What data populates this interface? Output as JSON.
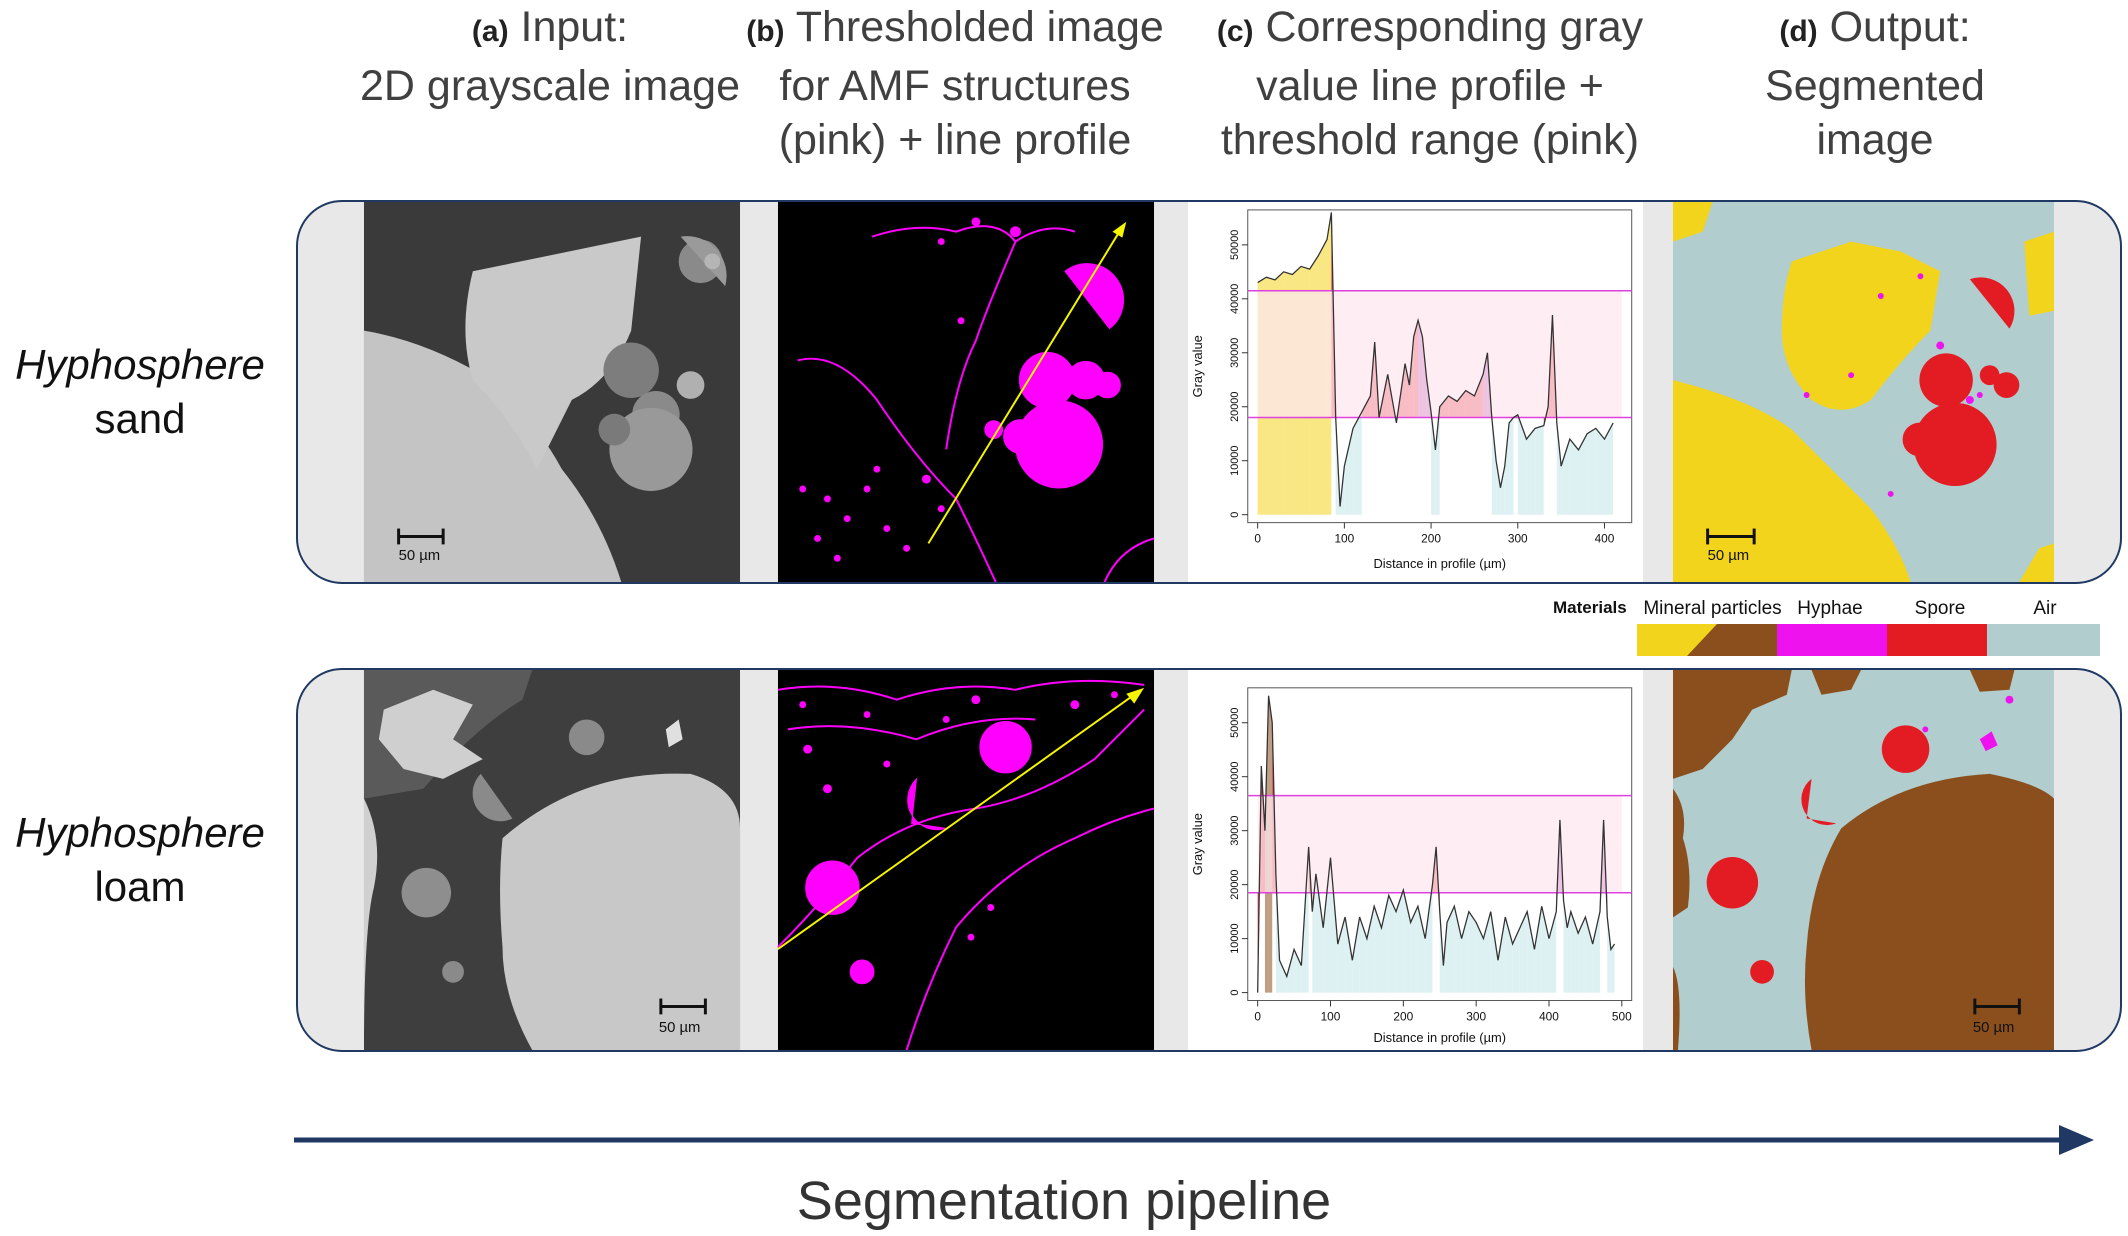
{
  "columns": [
    {
      "tag": "(a)",
      "title_first": "Input:",
      "line2": "2D grayscale image",
      "line3": ""
    },
    {
      "tag": "(b)",
      "title_first": "Thresholded image",
      "line2": "for AMF structures",
      "line3": "(pink) + line profile"
    },
    {
      "tag": "(c)",
      "title_first": "Corresponding gray",
      "line2": "value line profile +",
      "line3": "threshold range (pink)"
    },
    {
      "tag": "(d)",
      "title_first": "Output:",
      "line2": "Segmented",
      "line3": "image"
    }
  ],
  "rows": [
    {
      "label_italic": "Hyphosphere",
      "label_plain": "sand",
      "scale_bar": "50 µm"
    },
    {
      "label_italic": "Hyphosphere",
      "label_plain": "loam",
      "scale_bar": "50 µm"
    }
  ],
  "legend": {
    "title": "Materials",
    "items": [
      {
        "label": "Mineral particles",
        "color": "#f2d41c",
        "color2": "#8b4f1e"
      },
      {
        "label": "Hyphae",
        "color": "#ee12ee"
      },
      {
        "label": "Spore",
        "color": "#e31b23"
      },
      {
        "label": "Air",
        "color": "#b1cdcd"
      }
    ]
  },
  "pipeline_label": "Segmentation pipeline",
  "colors": {
    "frame": "#1f3864",
    "arrow": "#1f3864",
    "hyphae_pink": "#ff00ff",
    "profile_line": "#f5f500",
    "threshold_band": "#fde7ef",
    "threshold_line": "#e040e0",
    "air": "#b1cdcd",
    "mineral_sand": "#f2d41c",
    "mineral_loam": "#8b4f1e",
    "spore": "#e31b23"
  },
  "chart_data": [
    {
      "type": "line",
      "title": "",
      "xlabel": "Distance in profile (µm)",
      "ylabel": "Gray value",
      "xlim": [
        0,
        420
      ],
      "ylim": [
        0,
        55000
      ],
      "xticks": [
        0,
        100,
        200,
        300,
        400
      ],
      "yticks": [
        0,
        10000,
        20000,
        30000,
        40000,
        50000
      ],
      "threshold_range": [
        18000,
        41500
      ],
      "x": [
        0,
        10,
        20,
        30,
        40,
        50,
        60,
        70,
        80,
        85,
        90,
        95,
        100,
        110,
        120,
        130,
        135,
        140,
        150,
        160,
        170,
        175,
        180,
        185,
        190,
        195,
        200,
        205,
        210,
        220,
        230,
        240,
        250,
        260,
        265,
        270,
        275,
        280,
        285,
        290,
        295,
        300,
        310,
        320,
        330,
        335,
        340,
        345,
        350,
        360,
        370,
        380,
        390,
        400,
        410
      ],
      "values": [
        43000,
        44000,
        43500,
        45000,
        44500,
        46000,
        45500,
        48000,
        51000,
        56000,
        18000,
        1500,
        9000,
        16000,
        19000,
        22000,
        32000,
        18000,
        26000,
        17000,
        28000,
        24000,
        33000,
        36000,
        33000,
        25000,
        19000,
        12000,
        20000,
        22000,
        21000,
        23000,
        22000,
        26000,
        30000,
        18000,
        10000,
        5000,
        9000,
        17000,
        18000,
        18500,
        14000,
        16000,
        16500,
        20000,
        37000,
        17000,
        9000,
        14000,
        12000,
        15000,
        16000,
        14000,
        17000
      ]
    },
    {
      "type": "line",
      "title": "",
      "xlabel": "Distance in profile (µm)",
      "ylabel": "Gray value",
      "xlim": [
        0,
        500
      ],
      "ylim": [
        0,
        55000
      ],
      "xticks": [
        0,
        100,
        200,
        300,
        400,
        500
      ],
      "yticks": [
        0,
        10000,
        20000,
        30000,
        40000,
        50000
      ],
      "threshold_range": [
        18500,
        36500
      ],
      "x": [
        0,
        5,
        10,
        15,
        20,
        25,
        30,
        40,
        50,
        60,
        70,
        75,
        80,
        90,
        100,
        110,
        120,
        130,
        140,
        150,
        160,
        170,
        180,
        190,
        200,
        210,
        220,
        230,
        240,
        245,
        250,
        255,
        260,
        270,
        280,
        290,
        300,
        310,
        320,
        330,
        340,
        350,
        360,
        370,
        380,
        390,
        400,
        410,
        415,
        420,
        425,
        430,
        440,
        450,
        460,
        470,
        475,
        480,
        485,
        490
      ],
      "values": [
        0,
        42000,
        30000,
        55000,
        50000,
        22000,
        6000,
        3000,
        8000,
        5000,
        27000,
        15000,
        22000,
        12000,
        25000,
        9000,
        14000,
        6000,
        14000,
        10000,
        16000,
        12000,
        18000,
        15000,
        19000,
        13000,
        16000,
        10000,
        20000,
        27000,
        15000,
        5000,
        13000,
        16000,
        10000,
        15000,
        13000,
        10000,
        15000,
        6000,
        14000,
        9000,
        12000,
        15000,
        8000,
        16000,
        10000,
        15000,
        32000,
        17000,
        12000,
        15000,
        11000,
        14000,
        9000,
        15000,
        32000,
        14000,
        8000,
        9000
      ]
    }
  ]
}
